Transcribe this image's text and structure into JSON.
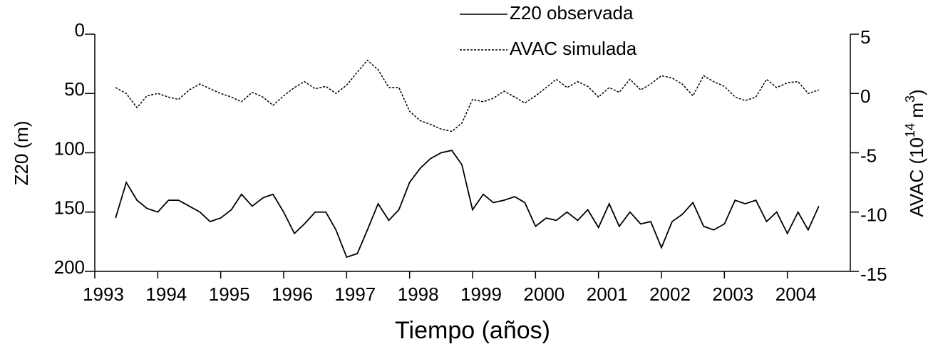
{
  "chart_data": {
    "type": "line",
    "xlabel": "Tiempo (años)",
    "ylabel": "Z20 (m)",
    "y2label": [
      "AVAC (10",
      "14",
      " m",
      "3",
      ")"
    ],
    "x": [
      1993.33,
      1993.5,
      1993.67,
      1993.83,
      1994,
      1994.17,
      1994.33,
      1994.5,
      1994.67,
      1994.83,
      1995,
      1995.17,
      1995.33,
      1995.5,
      1995.67,
      1995.83,
      1996,
      1996.17,
      1996.33,
      1996.5,
      1996.67,
      1996.83,
      1997,
      1997.17,
      1997.33,
      1997.5,
      1997.67,
      1997.83,
      1998,
      1998.17,
      1998.33,
      1998.5,
      1998.67,
      1998.83,
      1999,
      1999.17,
      1999.33,
      1999.5,
      1999.67,
      1999.83,
      2000,
      2000.17,
      2000.33,
      2000.5,
      2000.67,
      2000.83,
      2001,
      2001.17,
      2001.33,
      2001.5,
      2001.67,
      2001.83,
      2002,
      2002.17,
      2002.33,
      2002.5,
      2002.67,
      2002.83,
      2003,
      2003.17,
      2003.33,
      2003.5,
      2003.67,
      2003.83,
      2004,
      2004.17,
      2004.33,
      2004.5
    ],
    "series": [
      {
        "name": "Z20 observada",
        "color": "#000000",
        "dashed": false,
        "values": [
          155,
          125,
          140,
          147,
          150,
          140,
          140,
          145,
          150,
          158,
          155,
          148,
          135,
          145,
          138,
          135,
          150,
          168,
          160,
          150,
          150,
          165,
          188,
          185,
          165,
          143,
          157,
          148,
          125,
          113,
          105,
          100,
          98,
          110,
          148,
          135,
          142,
          140,
          137,
          142,
          162,
          155,
          157,
          150,
          157,
          148,
          163,
          143,
          162,
          150,
          160,
          158,
          180,
          158,
          152,
          142,
          162,
          165,
          160,
          140,
          143,
          140,
          158,
          150,
          168,
          150,
          165,
          145
        ]
      },
      {
        "name": "AVAC simulada",
        "color": "#000000",
        "dashed": true,
        "axis": "y2",
        "values": [
          0.5,
          0,
          -1.2,
          -0.2,
          0,
          -0.3,
          -0.5,
          0.3,
          0.8,
          0.4,
          0,
          -0.3,
          -0.7,
          0.1,
          -0.3,
          -1,
          -0.2,
          0.5,
          1,
          0.4,
          0.6,
          0,
          0.7,
          1.8,
          2.8,
          2,
          0.5,
          0.5,
          -1.5,
          -2.3,
          -2.6,
          -3,
          -3.2,
          -2.5,
          -0.5,
          -0.7,
          -0.4,
          0.2,
          -0.3,
          -0.8,
          -0.2,
          0.5,
          1.2,
          0.5,
          1,
          0.6,
          -0.3,
          0.5,
          0.1,
          1.2,
          0.3,
          0.8,
          1.5,
          1.3,
          0.8,
          -0.2,
          1.5,
          1,
          0.6,
          -0.3,
          -0.6,
          -0.3,
          1.2,
          0.5,
          0.9,
          1,
          0,
          0.3
        ]
      }
    ],
    "xlim": [
      1993,
      2005
    ],
    "xticks": [
      1993,
      1994,
      1995,
      1996,
      1997,
      1998,
      1999,
      2000,
      2001,
      2002,
      2003,
      2004
    ],
    "ylim": [
      200,
      0
    ],
    "yticks": [
      0,
      50,
      100,
      150,
      200
    ],
    "y2lim": [
      -15,
      5
    ],
    "y2ticks": [
      5,
      0,
      -5,
      -10,
      -15
    ],
    "legend": "top"
  }
}
